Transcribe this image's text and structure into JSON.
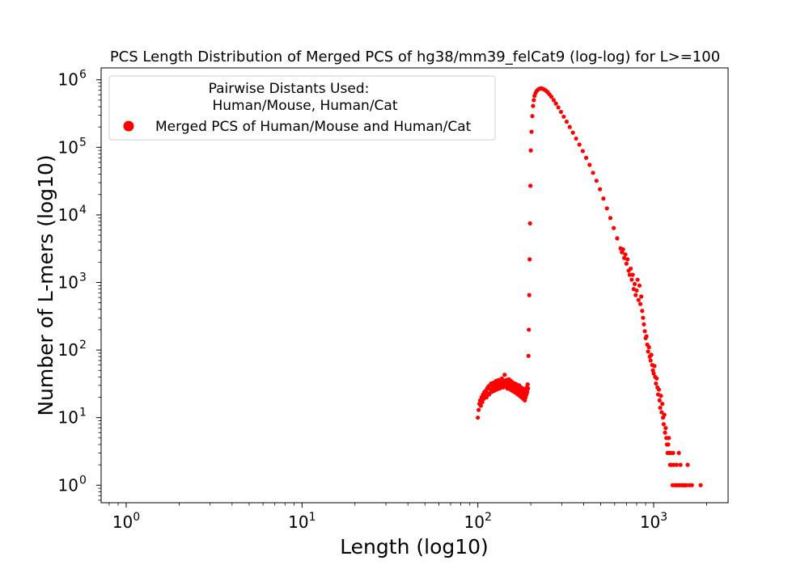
{
  "chart_data": {
    "type": "scatter",
    "title": "PCS Length Distribution of Merged PCS of hg38/mm39_felCat9 (log-log) for L>=100",
    "xlabel": "Length (log10)",
    "ylabel": "Number of L-mers (log10)",
    "x_scale": "log",
    "y_scale": "log",
    "xlim": [
      0.72,
      2650
    ],
    "ylim": [
      0.55,
      1500000
    ],
    "x_ticks": [
      {
        "value": 1,
        "base": "10",
        "exp": "0"
      },
      {
        "value": 10,
        "base": "10",
        "exp": "1"
      },
      {
        "value": 100,
        "base": "10",
        "exp": "2"
      },
      {
        "value": 1000,
        "base": "10",
        "exp": "3"
      }
    ],
    "y_ticks": [
      {
        "value": 1,
        "base": "10",
        "exp": "0"
      },
      {
        "value": 10,
        "base": "10",
        "exp": "1"
      },
      {
        "value": 100,
        "base": "10",
        "exp": "2"
      },
      {
        "value": 1000,
        "base": "10",
        "exp": "3"
      },
      {
        "value": 10000,
        "base": "10",
        "exp": "4"
      },
      {
        "value": 100000,
        "base": "10",
        "exp": "5"
      },
      {
        "value": 1000000,
        "base": "10",
        "exp": "6"
      }
    ],
    "grid": false,
    "legend": {
      "placement": "top-left",
      "title_line1": "Pairwise Distants Used:",
      "title_line2": "Human/Mouse, Human/Cat"
    },
    "series": [
      {
        "name": "Merged PCS of Human/Mouse and Human/Cat",
        "color": "#ff0000",
        "points": [
          [
            100,
            10
          ],
          [
            101,
            13
          ],
          [
            102,
            16
          ],
          [
            103,
            18
          ],
          [
            104,
            15
          ],
          [
            105,
            20
          ],
          [
            106,
            17
          ],
          [
            107,
            22
          ],
          [
            108,
            19
          ],
          [
            109,
            24
          ],
          [
            110,
            21
          ],
          [
            111,
            25
          ],
          [
            112,
            20
          ],
          [
            113,
            27
          ],
          [
            114,
            23
          ],
          [
            115,
            29
          ],
          [
            116,
            22
          ],
          [
            117,
            30
          ],
          [
            118,
            26
          ],
          [
            119,
            32
          ],
          [
            120,
            24
          ],
          [
            121,
            30
          ],
          [
            122,
            28
          ],
          [
            123,
            33
          ],
          [
            124,
            25
          ],
          [
            125,
            31
          ],
          [
            126,
            29
          ],
          [
            127,
            35
          ],
          [
            128,
            26
          ],
          [
            129,
            33
          ],
          [
            130,
            28
          ],
          [
            131,
            36
          ],
          [
            132,
            30
          ],
          [
            133,
            27
          ],
          [
            134,
            34
          ],
          [
            135,
            31
          ],
          [
            136,
            29
          ],
          [
            137,
            38
          ],
          [
            138,
            32
          ],
          [
            139,
            28
          ],
          [
            140,
            35
          ],
          [
            141,
            30
          ],
          [
            142,
            43
          ],
          [
            143,
            33
          ],
          [
            144,
            29
          ],
          [
            145,
            36
          ],
          [
            146,
            31
          ],
          [
            147,
            27
          ],
          [
            148,
            34
          ],
          [
            149,
            30
          ],
          [
            150,
            37
          ],
          [
            151,
            28
          ],
          [
            152,
            32
          ],
          [
            153,
            26
          ],
          [
            154,
            35
          ],
          [
            155,
            29
          ],
          [
            156,
            31
          ],
          [
            157,
            25
          ],
          [
            158,
            33
          ],
          [
            159,
            27
          ],
          [
            160,
            30
          ],
          [
            161,
            24
          ],
          [
            162,
            32
          ],
          [
            163,
            26
          ],
          [
            164,
            29
          ],
          [
            165,
            23
          ],
          [
            166,
            31
          ],
          [
            167,
            25
          ],
          [
            168,
            28
          ],
          [
            169,
            22
          ],
          [
            170,
            27
          ],
          [
            171,
            24
          ],
          [
            172,
            30
          ],
          [
            173,
            21
          ],
          [
            174,
            26
          ],
          [
            175,
            23
          ],
          [
            176,
            28
          ],
          [
            177,
            20
          ],
          [
            178,
            25
          ],
          [
            179,
            22
          ],
          [
            180,
            27
          ],
          [
            181,
            19
          ],
          [
            182,
            24
          ],
          [
            183,
            21
          ],
          [
            184,
            26
          ],
          [
            185,
            18
          ],
          [
            186,
            23
          ],
          [
            187,
            20
          ],
          [
            188,
            25
          ],
          [
            189,
            22
          ],
          [
            190,
            28
          ],
          [
            191,
            24
          ],
          [
            192,
            31
          ],
          [
            193,
            27
          ],
          [
            194,
            82
          ],
          [
            195,
            200
          ],
          [
            196,
            650
          ],
          [
            197,
            2200
          ],
          [
            198,
            7500
          ],
          [
            199,
            27000
          ],
          [
            200,
            90000
          ],
          [
            202,
            170000
          ],
          [
            204,
            290000
          ],
          [
            206,
            410000
          ],
          [
            208,
            500000
          ],
          [
            210,
            580000
          ],
          [
            213,
            640000
          ],
          [
            216,
            680000
          ],
          [
            220,
            715000
          ],
          [
            224,
            735000
          ],
          [
            228,
            745000
          ],
          [
            232,
            740000
          ],
          [
            236,
            728000
          ],
          [
            240,
            710000
          ],
          [
            245,
            685000
          ],
          [
            250,
            650000
          ],
          [
            256,
            605000
          ],
          [
            262,
            560000
          ],
          [
            270,
            500000
          ],
          [
            278,
            445000
          ],
          [
            287,
            390000
          ],
          [
            297,
            335000
          ],
          [
            308,
            285000
          ],
          [
            320,
            240000
          ],
          [
            333,
            200000
          ],
          [
            347,
            165000
          ],
          [
            362,
            135000
          ],
          [
            378,
            110000
          ],
          [
            395,
            88000
          ],
          [
            413,
            70000
          ],
          [
            432,
            55000
          ],
          [
            452,
            42000
          ],
          [
            473,
            32000
          ],
          [
            495,
            24000
          ],
          [
            518,
            17500
          ],
          [
            542,
            12500
          ],
          [
            567,
            9000
          ],
          [
            593,
            6400
          ],
          [
            620,
            4500
          ],
          [
            648,
            3200
          ],
          [
            660,
            2800
          ],
          [
            670,
            3100
          ],
          [
            680,
            2300
          ],
          [
            690,
            2600
          ],
          [
            700,
            1900
          ],
          [
            710,
            2200
          ],
          [
            720,
            1500
          ],
          [
            730,
            1300
          ],
          [
            740,
            1600
          ],
          [
            750,
            1100
          ],
          [
            760,
            1300
          ],
          [
            770,
            800
          ],
          [
            780,
            950
          ],
          [
            790,
            650
          ],
          [
            800,
            760
          ],
          [
            810,
            1100
          ],
          [
            820,
            550
          ],
          [
            830,
            900
          ],
          [
            840,
            480
          ],
          [
            850,
            620
          ],
          [
            860,
            380
          ],
          [
            870,
            300
          ],
          [
            880,
            240
          ],
          [
            890,
            190
          ],
          [
            900,
            150
          ],
          [
            910,
            160
          ],
          [
            920,
            120
          ],
          [
            930,
            95
          ],
          [
            940,
            110
          ],
          [
            950,
            80
          ],
          [
            960,
            70
          ],
          [
            970,
            85
          ],
          [
            980,
            60
          ],
          [
            990,
            50
          ],
          [
            1000,
            45
          ],
          [
            1010,
            58
          ],
          [
            1020,
            40
          ],
          [
            1030,
            32
          ],
          [
            1040,
            38
          ],
          [
            1050,
            28
          ],
          [
            1060,
            22
          ],
          [
            1070,
            26
          ],
          [
            1080,
            18
          ],
          [
            1090,
            14
          ],
          [
            1100,
            21
          ],
          [
            1110,
            12
          ],
          [
            1120,
            16
          ],
          [
            1130,
            10
          ],
          [
            1140,
            8
          ],
          [
            1150,
            11
          ],
          [
            1160,
            6
          ],
          [
            1170,
            7
          ],
          [
            1180,
            5
          ],
          [
            1190,
            4
          ],
          [
            1200,
            3
          ],
          [
            1210,
            4
          ],
          [
            1220,
            5
          ],
          [
            1230,
            3
          ],
          [
            1240,
            2
          ],
          [
            1250,
            3
          ],
          [
            1260,
            2
          ],
          [
            1280,
            1
          ],
          [
            1290,
            3
          ],
          [
            1300,
            2
          ],
          [
            1320,
            1
          ],
          [
            1340,
            1
          ],
          [
            1350,
            2
          ],
          [
            1370,
            1
          ],
          [
            1390,
            3
          ],
          [
            1400,
            1
          ],
          [
            1420,
            2
          ],
          [
            1440,
            1
          ],
          [
            1460,
            1
          ],
          [
            1480,
            1
          ],
          [
            1500,
            1
          ],
          [
            1520,
            1
          ],
          [
            1540,
            1
          ],
          [
            1560,
            2
          ],
          [
            1600,
            1
          ],
          [
            1650,
            1
          ],
          [
            1850,
            1
          ]
        ]
      }
    ]
  }
}
